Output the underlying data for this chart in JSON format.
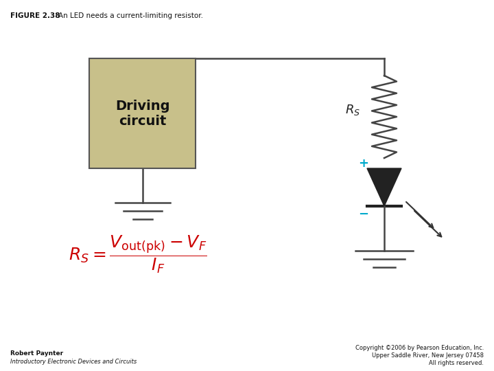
{
  "title": "FIGURE 2.38",
  "title_text": "An LED needs a current-limiting resistor.",
  "bg_color": "#ffffff",
  "box_fill": "#c8c08a",
  "box_edge": "#555555",
  "box_text": "Driving\ncircuit",
  "line_color": "#444444",
  "resistor_color": "#444444",
  "led_color": "#222222",
  "plus_color": "#00aacc",
  "minus_color": "#00aacc",
  "formula_color": "#cc0000",
  "footer_left_line1": "Robert Paynter",
  "footer_left_line2": "Introductory Electronic Devices and Circuits",
  "footer_right_line1": "Copyright ©2006 by Pearson Education, Inc.",
  "footer_right_line2": "Upper Saddle River, New Jersey 07458",
  "footer_right_line3": "All rights reserved."
}
